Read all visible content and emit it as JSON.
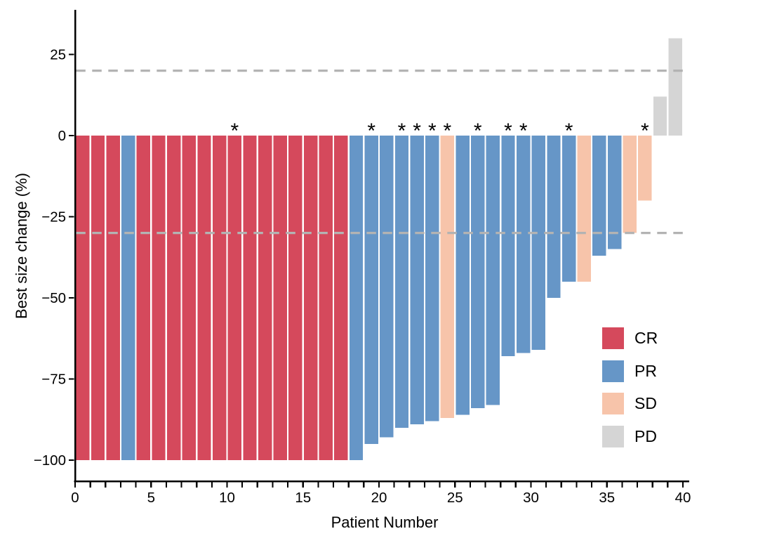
{
  "chart_data": {
    "type": "bar",
    "chart_kind": "waterfall-best-response",
    "title": "",
    "xlabel": "Patient Number",
    "ylabel": "Best size change (%)",
    "x_axis": {
      "min": 0,
      "max": 40,
      "labeled_ticks": [
        0,
        5,
        10,
        15,
        20,
        25,
        30,
        35,
        40
      ],
      "minor_tick_step": 1
    },
    "y_axis": {
      "ticks": [
        25,
        0,
        -25,
        -50,
        -75,
        -100
      ],
      "ticks_display": [
        "25",
        "0",
        "−25",
        "−50",
        "−75",
        "−100"
      ],
      "min": -105,
      "max": 36
    },
    "reference_lines": [
      {
        "y": 20,
        "style": "dashed",
        "color": "#b3b3b3"
      },
      {
        "y": -30,
        "style": "dashed",
        "color": "#b3b3b3"
      }
    ],
    "grid": "off",
    "annotation_symbol": "*",
    "annotated_patients": [
      11,
      20,
      22,
      23,
      24,
      25,
      27,
      29,
      30,
      33,
      38
    ],
    "colors": {
      "CR": "#d5495c",
      "PR": "#6696c7",
      "SD": "#f7c4aa",
      "PD": "#d5d5d5"
    },
    "legend": {
      "position": "inside-right",
      "entries": [
        {
          "label": "CR",
          "color": "#d5495c"
        },
        {
          "label": "PR",
          "color": "#6696c7"
        },
        {
          "label": "SD",
          "color": "#f7c4aa"
        },
        {
          "label": "PD",
          "color": "#d5d5d5"
        }
      ]
    },
    "patients": [
      {
        "n": 1,
        "value": -100,
        "response": "CR",
        "annotated": false
      },
      {
        "n": 2,
        "value": -100,
        "response": "CR",
        "annotated": false
      },
      {
        "n": 3,
        "value": -100,
        "response": "CR",
        "annotated": false
      },
      {
        "n": 4,
        "value": -100,
        "response": "PR",
        "annotated": false
      },
      {
        "n": 5,
        "value": -100,
        "response": "CR",
        "annotated": false
      },
      {
        "n": 6,
        "value": -100,
        "response": "CR",
        "annotated": false
      },
      {
        "n": 7,
        "value": -100,
        "response": "CR",
        "annotated": false
      },
      {
        "n": 8,
        "value": -100,
        "response": "CR",
        "annotated": false
      },
      {
        "n": 9,
        "value": -100,
        "response": "CR",
        "annotated": false
      },
      {
        "n": 10,
        "value": -100,
        "response": "CR",
        "annotated": false
      },
      {
        "n": 11,
        "value": -100,
        "response": "CR",
        "annotated": true
      },
      {
        "n": 12,
        "value": -100,
        "response": "CR",
        "annotated": false
      },
      {
        "n": 13,
        "value": -100,
        "response": "CR",
        "annotated": false
      },
      {
        "n": 14,
        "value": -100,
        "response": "CR",
        "annotated": false
      },
      {
        "n": 15,
        "value": -100,
        "response": "CR",
        "annotated": false
      },
      {
        "n": 16,
        "value": -100,
        "response": "CR",
        "annotated": false
      },
      {
        "n": 17,
        "value": -100,
        "response": "CR",
        "annotated": false
      },
      {
        "n": 18,
        "value": -100,
        "response": "CR",
        "annotated": false
      },
      {
        "n": 19,
        "value": -100,
        "response": "PR",
        "annotated": false
      },
      {
        "n": 20,
        "value": -95,
        "response": "PR",
        "annotated": true
      },
      {
        "n": 21,
        "value": -93,
        "response": "PR",
        "annotated": false
      },
      {
        "n": 22,
        "value": -90,
        "response": "PR",
        "annotated": true
      },
      {
        "n": 23,
        "value": -89,
        "response": "PR",
        "annotated": true
      },
      {
        "n": 24,
        "value": -88,
        "response": "PR",
        "annotated": true
      },
      {
        "n": 25,
        "value": -87,
        "response": "SD",
        "annotated": true
      },
      {
        "n": 26,
        "value": -86,
        "response": "PR",
        "annotated": false
      },
      {
        "n": 27,
        "value": -84,
        "response": "PR",
        "annotated": true
      },
      {
        "n": 28,
        "value": -83,
        "response": "PR",
        "annotated": false
      },
      {
        "n": 29,
        "value": -68,
        "response": "PR",
        "annotated": true
      },
      {
        "n": 30,
        "value": -67,
        "response": "PR",
        "annotated": true
      },
      {
        "n": 31,
        "value": -66,
        "response": "PR",
        "annotated": false
      },
      {
        "n": 32,
        "value": -50,
        "response": "PR",
        "annotated": false
      },
      {
        "n": 33,
        "value": -45,
        "response": "PR",
        "annotated": true
      },
      {
        "n": 34,
        "value": -45,
        "response": "SD",
        "annotated": false
      },
      {
        "n": 35,
        "value": -37,
        "response": "PR",
        "annotated": false
      },
      {
        "n": 36,
        "value": -35,
        "response": "PR",
        "annotated": false
      },
      {
        "n": 37,
        "value": -30,
        "response": "SD",
        "annotated": false
      },
      {
        "n": 38,
        "value": -20,
        "response": "SD",
        "annotated": true
      },
      {
        "n": 39,
        "value": 12,
        "response": "PD",
        "annotated": false
      },
      {
        "n": 40,
        "value": 30,
        "response": "PD",
        "annotated": false
      }
    ]
  }
}
